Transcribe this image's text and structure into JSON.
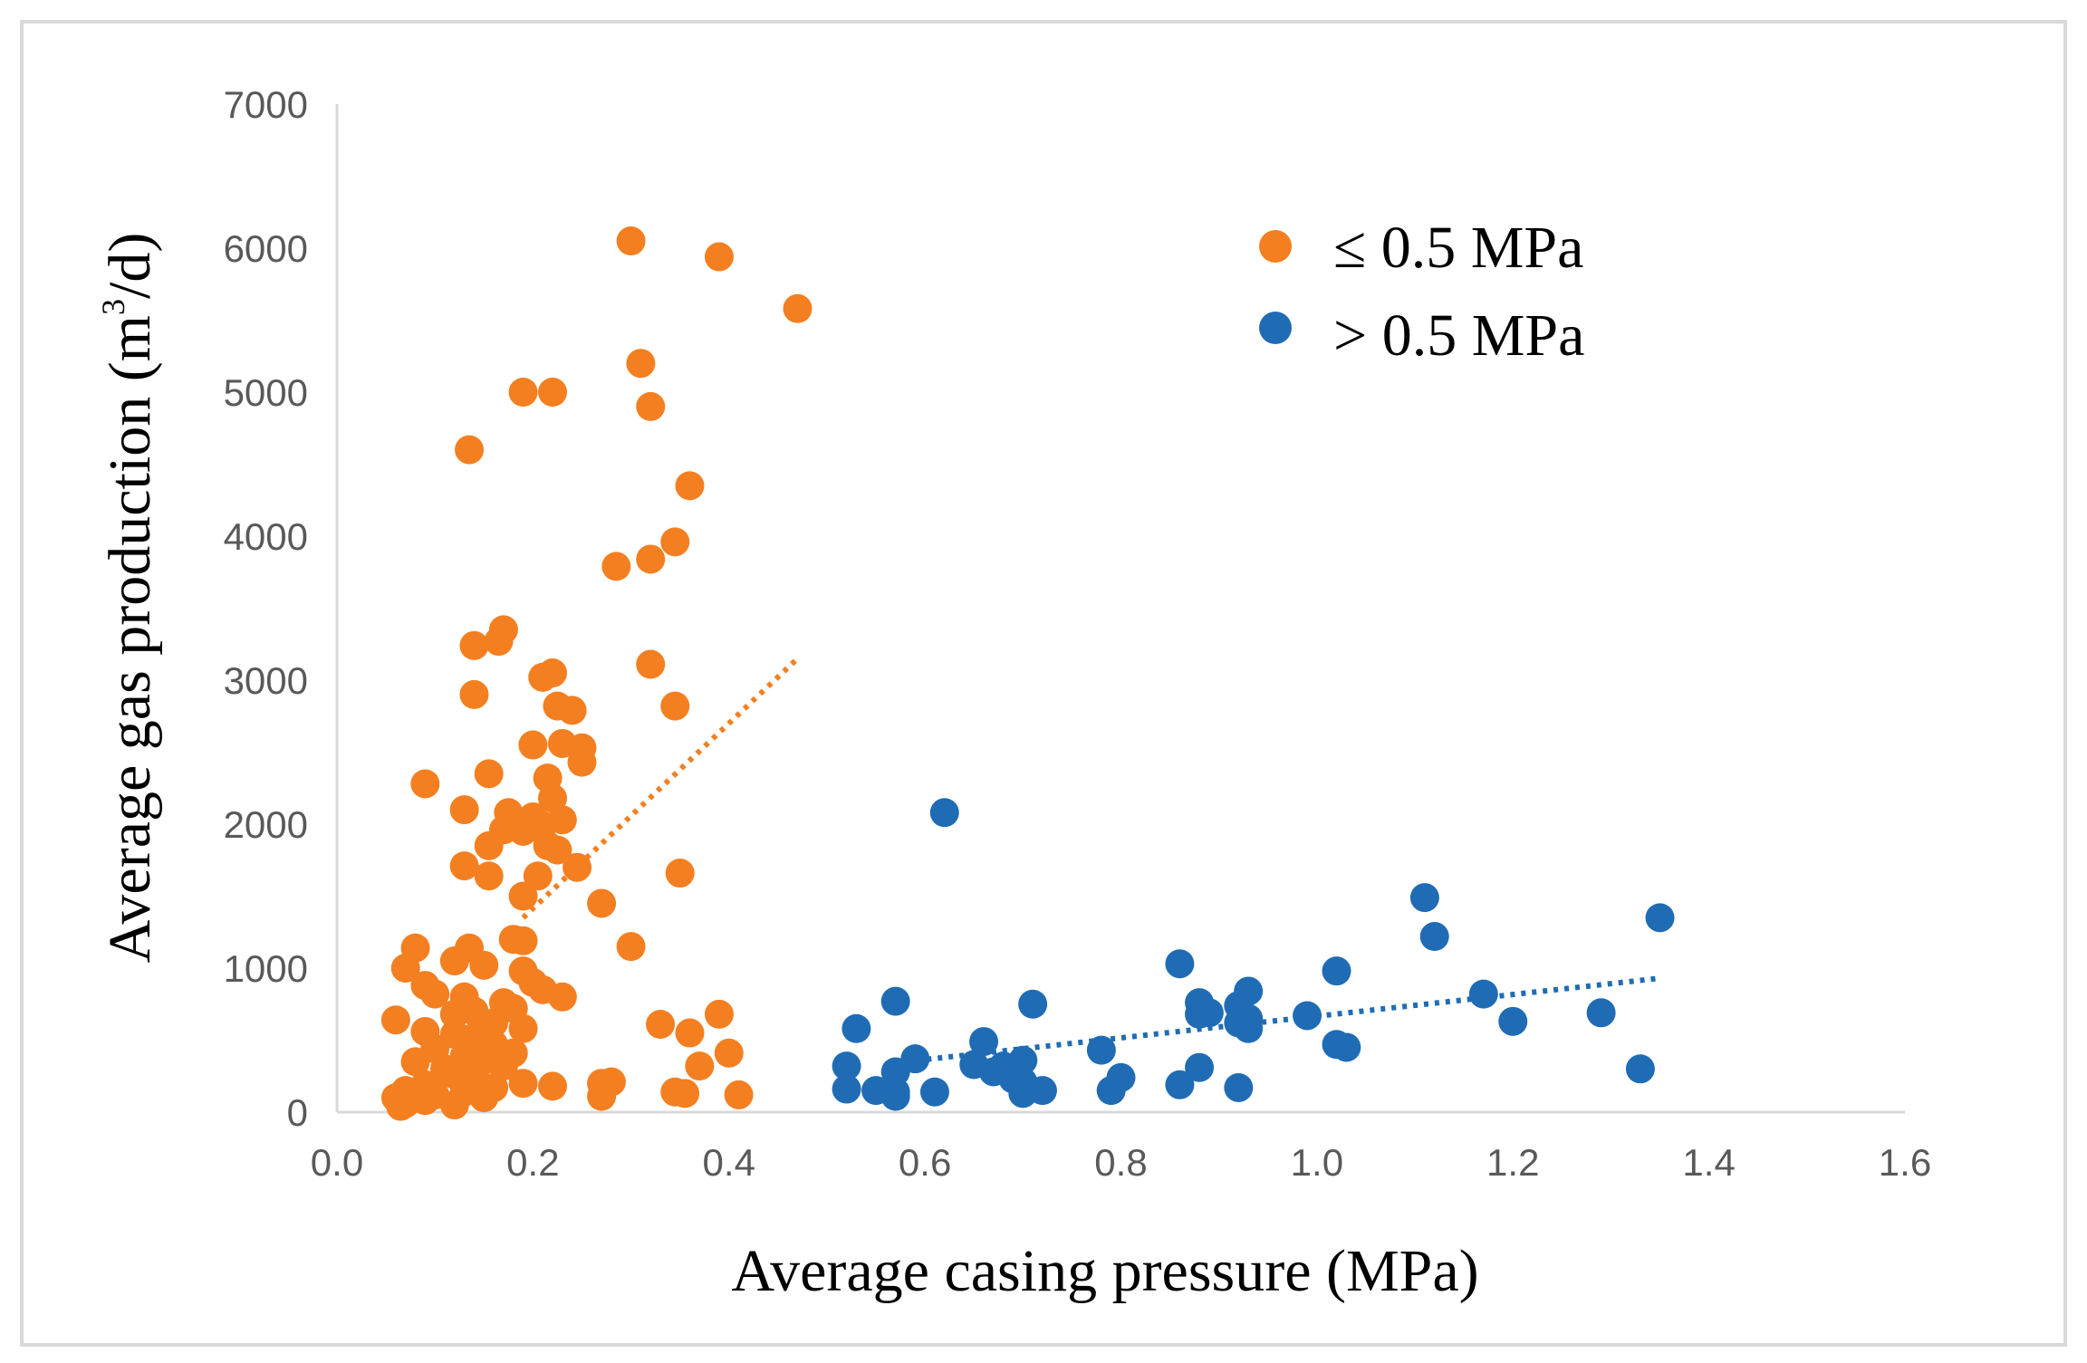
{
  "chart_data": {
    "type": "scatter",
    "xlabel": "Average casing pressure (MPa)",
    "ylabel_main": "Average gas production (m",
    "ylabel_sup": "3",
    "ylabel_tail": "/d)",
    "xlim": [
      0,
      1.6
    ],
    "ylim": [
      0,
      7000
    ],
    "x_ticks": [
      "0.0",
      "0.2",
      "0.4",
      "0.6",
      "0.8",
      "1.0",
      "1.2",
      "1.4",
      "1.6"
    ],
    "x_tick_values": [
      0,
      0.2,
      0.4,
      0.6,
      0.8,
      1.0,
      1.2,
      1.4,
      1.6
    ],
    "y_ticks": [
      "0",
      "1000",
      "2000",
      "3000",
      "4000",
      "5000",
      "6000",
      "7000"
    ],
    "y_tick_values": [
      0,
      1000,
      2000,
      3000,
      4000,
      5000,
      6000,
      7000
    ],
    "legend_position": "top-right",
    "series": [
      {
        "name": "≤ 0.5 MPa",
        "color": "#f47f20",
        "trendline": {
          "x": [
            0.19,
            0.47
          ],
          "y": [
            1350,
            3150
          ]
        },
        "points": [
          [
            0.3,
            6050
          ],
          [
            0.39,
            5940
          ],
          [
            0.47,
            5580
          ],
          [
            0.31,
            5200
          ],
          [
            0.19,
            5000
          ],
          [
            0.22,
            5000
          ],
          [
            0.32,
            4900
          ],
          [
            0.135,
            4600
          ],
          [
            0.36,
            4350
          ],
          [
            0.345,
            3960
          ],
          [
            0.32,
            3840
          ],
          [
            0.285,
            3790
          ],
          [
            0.17,
            3350
          ],
          [
            0.14,
            3240
          ],
          [
            0.165,
            3270
          ],
          [
            0.32,
            3110
          ],
          [
            0.21,
            3020
          ],
          [
            0.22,
            3050
          ],
          [
            0.14,
            2900
          ],
          [
            0.345,
            2820
          ],
          [
            0.225,
            2820
          ],
          [
            0.24,
            2790
          ],
          [
            0.2,
            2550
          ],
          [
            0.23,
            2560
          ],
          [
            0.25,
            2530
          ],
          [
            0.25,
            2430
          ],
          [
            0.215,
            2320
          ],
          [
            0.155,
            2350
          ],
          [
            0.09,
            2280
          ],
          [
            0.22,
            2180
          ],
          [
            0.13,
            2100
          ],
          [
            0.175,
            2080
          ],
          [
            0.2,
            2050
          ],
          [
            0.23,
            2030
          ],
          [
            0.21,
            1990
          ],
          [
            0.17,
            1960
          ],
          [
            0.19,
            1950
          ],
          [
            0.155,
            1850
          ],
          [
            0.215,
            1850
          ],
          [
            0.225,
            1820
          ],
          [
            0.13,
            1710
          ],
          [
            0.245,
            1700
          ],
          [
            0.35,
            1660
          ],
          [
            0.155,
            1640
          ],
          [
            0.205,
            1640
          ],
          [
            0.19,
            1500
          ],
          [
            0.27,
            1450
          ],
          [
            0.3,
            1150
          ],
          [
            0.08,
            1140
          ],
          [
            0.18,
            1200
          ],
          [
            0.19,
            1190
          ],
          [
            0.135,
            1140
          ],
          [
            0.07,
            1000
          ],
          [
            0.12,
            1050
          ],
          [
            0.15,
            1020
          ],
          [
            0.19,
            980
          ],
          [
            0.09,
            880
          ],
          [
            0.2,
            900
          ],
          [
            0.23,
            800
          ],
          [
            0.1,
            820
          ],
          [
            0.13,
            800
          ],
          [
            0.21,
            850
          ],
          [
            0.17,
            760
          ],
          [
            0.12,
            680
          ],
          [
            0.14,
            700
          ],
          [
            0.18,
            720
          ],
          [
            0.06,
            640
          ],
          [
            0.16,
            620
          ],
          [
            0.39,
            680
          ],
          [
            0.33,
            610
          ],
          [
            0.36,
            550
          ],
          [
            0.09,
            560
          ],
          [
            0.19,
            580
          ],
          [
            0.12,
            540
          ],
          [
            0.14,
            520
          ],
          [
            0.16,
            470
          ],
          [
            0.1,
            440
          ],
          [
            0.18,
            410
          ],
          [
            0.4,
            410
          ],
          [
            0.13,
            390
          ],
          [
            0.08,
            350
          ],
          [
            0.15,
            360
          ],
          [
            0.11,
            300
          ],
          [
            0.17,
            320
          ],
          [
            0.37,
            320
          ],
          [
            0.12,
            260
          ],
          [
            0.14,
            230
          ],
          [
            0.28,
            210
          ],
          [
            0.27,
            200
          ],
          [
            0.19,
            200
          ],
          [
            0.09,
            190
          ],
          [
            0.16,
            170
          ],
          [
            0.22,
            180
          ],
          [
            0.07,
            150
          ],
          [
            0.13,
            140
          ],
          [
            0.1,
            120
          ],
          [
            0.345,
            140
          ],
          [
            0.355,
            130
          ],
          [
            0.41,
            120
          ],
          [
            0.27,
            110
          ],
          [
            0.06,
            100
          ],
          [
            0.15,
            100
          ],
          [
            0.09,
            80
          ],
          [
            0.07,
            60
          ],
          [
            0.12,
            50
          ],
          [
            0.065,
            40
          ]
        ]
      },
      {
        "name": "> 0.5 MPa",
        "color": "#1f6cb5",
        "trendline": {
          "x": [
            0.58,
            1.35
          ],
          "y": [
            350,
            930
          ]
        },
        "points": [
          [
            0.62,
            2080
          ],
          [
            1.11,
            1490
          ],
          [
            1.35,
            1350
          ],
          [
            1.12,
            1220
          ],
          [
            0.86,
            1030
          ],
          [
            1.02,
            980
          ],
          [
            0.93,
            840
          ],
          [
            0.57,
            770
          ],
          [
            0.71,
            750
          ],
          [
            1.17,
            820
          ],
          [
            0.88,
            760
          ],
          [
            0.92,
            740
          ],
          [
            0.89,
            690
          ],
          [
            0.88,
            680
          ],
          [
            0.99,
            670
          ],
          [
            0.93,
            650
          ],
          [
            0.92,
            620
          ],
          [
            1.29,
            690
          ],
          [
            1.2,
            630
          ],
          [
            0.53,
            580
          ],
          [
            0.93,
            580
          ],
          [
            0.66,
            490
          ],
          [
            1.02,
            470
          ],
          [
            1.03,
            450
          ],
          [
            0.78,
            430
          ],
          [
            0.59,
            370
          ],
          [
            0.7,
            360
          ],
          [
            0.65,
            330
          ],
          [
            0.68,
            320
          ],
          [
            0.88,
            310
          ],
          [
            0.52,
            320
          ],
          [
            1.33,
            300
          ],
          [
            0.57,
            280
          ],
          [
            0.67,
            280
          ],
          [
            0.8,
            240
          ],
          [
            0.69,
            230
          ],
          [
            0.7,
            210
          ],
          [
            0.86,
            190
          ],
          [
            0.52,
            160
          ],
          [
            0.55,
            150
          ],
          [
            0.57,
            140
          ],
          [
            0.61,
            140
          ],
          [
            0.72,
            150
          ],
          [
            0.79,
            150
          ],
          [
            0.92,
            170
          ],
          [
            0.7,
            130
          ],
          [
            0.57,
            110
          ]
        ]
      }
    ]
  }
}
